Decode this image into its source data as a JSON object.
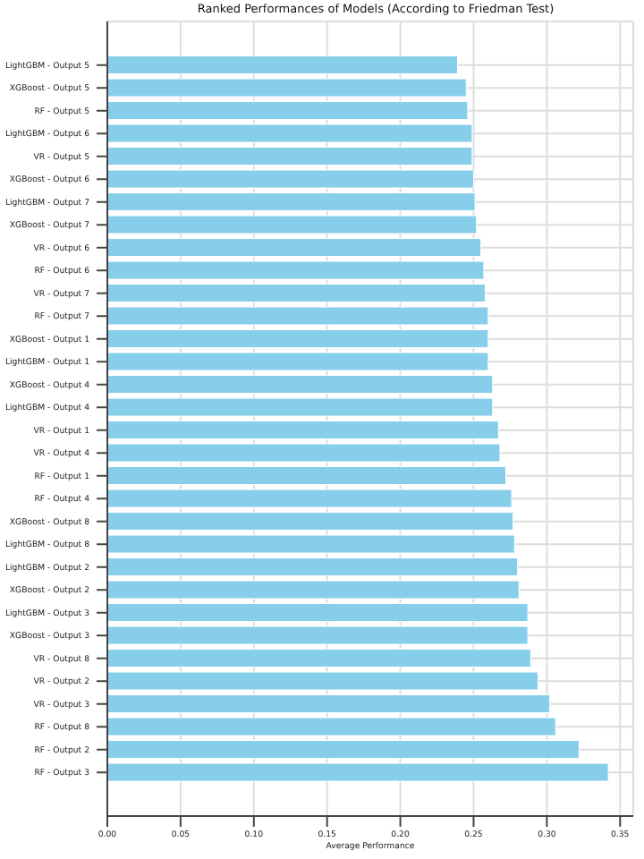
{
  "chart_data": {
    "type": "bar",
    "orientation": "horizontal",
    "title": "Ranked Performances of Models (According to Friedman Test)",
    "xlabel": "Average Performance",
    "categories": [
      "LightGBM - Output 5",
      "XGBoost - Output 5",
      "RF - Output 5",
      "LightGBM - Output 6",
      "VR - Output 5",
      "XGBoost - Output 6",
      "LightGBM - Output 7",
      "XGBoost - Output 7",
      "VR - Output 6",
      "RF - Output 6",
      "VR - Output 7",
      "RF - Output 7",
      "XGBoost - Output 1",
      "LightGBM - Output 1",
      "XGBoost - Output 4",
      "LightGBM - Output 4",
      "VR - Output 1",
      "VR - Output 4",
      "RF - Output 1",
      "RF - Output 4",
      "XGBoost - Output 8",
      "LightGBM - Output 8",
      "LightGBM - Output 2",
      "XGBoost - Output 2",
      "LightGBM - Output 3",
      "XGBoost - Output 3",
      "VR - Output 8",
      "VR - Output 2",
      "VR - Output 3",
      "RF - Output 8",
      "RF - Output 2",
      "RF - Output 3"
    ],
    "values": [
      0.239,
      0.245,
      0.246,
      0.249,
      0.249,
      0.25,
      0.251,
      0.252,
      0.255,
      0.257,
      0.258,
      0.26,
      0.26,
      0.26,
      0.263,
      0.263,
      0.267,
      0.268,
      0.272,
      0.276,
      0.277,
      0.278,
      0.28,
      0.281,
      0.287,
      0.287,
      0.289,
      0.294,
      0.302,
      0.306,
      0.322,
      0.342
    ],
    "color": "#87ceeb",
    "xlim": [
      0,
      0.359
    ],
    "xticks": [
      {
        "value": 0,
        "label": "0.00"
      },
      {
        "value": 0.05,
        "label": "0.05"
      },
      {
        "value": 0.1,
        "label": "0.10"
      },
      {
        "value": 0.15,
        "label": "0.15"
      },
      {
        "value": 0.2,
        "label": "0.20"
      },
      {
        "value": 0.25,
        "label": "0.25"
      },
      {
        "value": 0.3,
        "label": "0.30"
      },
      {
        "value": 0.35,
        "label": "0.35"
      }
    ],
    "grid": true
  }
}
